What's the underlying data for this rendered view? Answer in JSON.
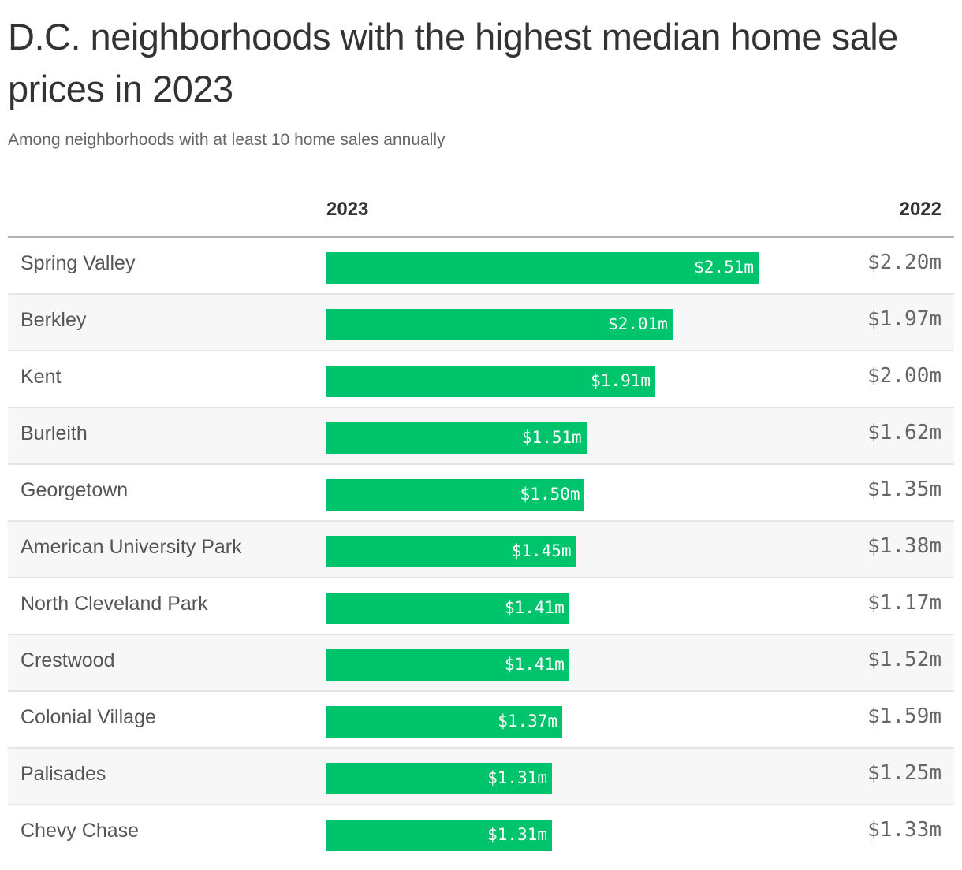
{
  "chart_data": {
    "type": "bar",
    "title": "D.C. neighborhoods with the highest median home sale prices in 2023",
    "subtitle": "Among neighborhoods with at least 10 home sales annually",
    "columns": [
      "2023",
      "2022"
    ],
    "categories": [
      "Spring Valley",
      "Berkley",
      "Kent",
      "Burleith",
      "Georgetown",
      "American University Park",
      "North Cleveland Park",
      "Crestwood",
      "Colonial Village",
      "Palisades",
      "Chevy Chase"
    ],
    "series": [
      {
        "name": "2023",
        "values": [
          2.51,
          2.01,
          1.91,
          1.51,
          1.5,
          1.45,
          1.41,
          1.41,
          1.37,
          1.31,
          1.31
        ],
        "labels": [
          "$2.51m",
          "$2.01m",
          "$1.91m",
          "$1.51m",
          "$1.50m",
          "$1.45m",
          "$1.41m",
          "$1.41m",
          "$1.37m",
          "$1.31m",
          "$1.31m"
        ],
        "color": "#00c46c"
      },
      {
        "name": "2022",
        "values": [
          2.2,
          1.97,
          2.0,
          1.62,
          1.35,
          1.38,
          1.17,
          1.52,
          1.59,
          1.25,
          1.33
        ],
        "labels": [
          "$2.20m",
          "$1.97m",
          "$2.00m",
          "$1.62m",
          "$1.35m",
          "$1.38m",
          "$1.17m",
          "$1.52m",
          "$1.59m",
          "$1.25m",
          "$1.33m"
        ]
      }
    ],
    "unit": "millions USD"
  }
}
